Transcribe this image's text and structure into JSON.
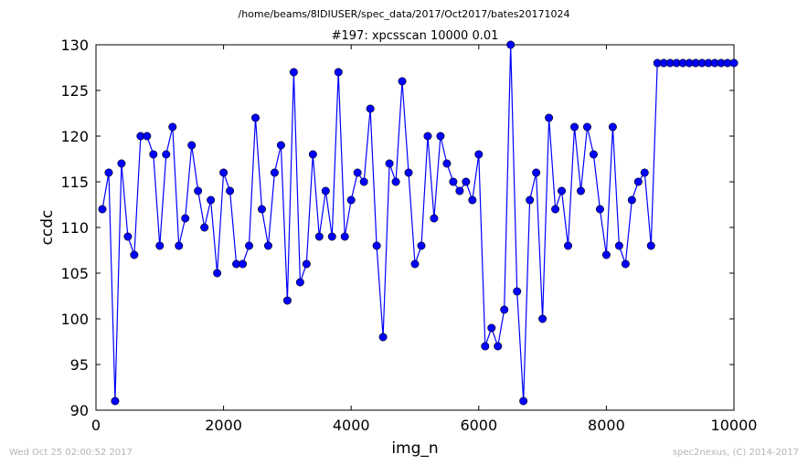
{
  "chart_data": {
    "type": "line",
    "suptitle": "/home/beams/8IDIUSER/spec_data/2017/Oct2017/bates20171024",
    "title": "#197: xpcsscan 10000 0.01",
    "xlabel": "img_n",
    "ylabel": "ccdc",
    "xlim": [
      0,
      10000
    ],
    "ylim": [
      90,
      130
    ],
    "xticks": [
      0,
      2000,
      4000,
      6000,
      8000,
      10000
    ],
    "yticks": [
      90,
      95,
      100,
      105,
      110,
      115,
      120,
      125,
      130
    ],
    "grid": false,
    "series": [
      {
        "color": "#0000ff",
        "marker": "circle",
        "x": [
          100,
          200,
          300,
          400,
          500,
          600,
          700,
          800,
          900,
          1000,
          1100,
          1200,
          1300,
          1400,
          1500,
          1600,
          1700,
          1800,
          1900,
          2000,
          2100,
          2200,
          2300,
          2400,
          2500,
          2600,
          2700,
          2800,
          2900,
          3000,
          3100,
          3200,
          3300,
          3400,
          3500,
          3600,
          3700,
          3800,
          3900,
          4000,
          4100,
          4200,
          4300,
          4400,
          4500,
          4600,
          4700,
          4800,
          4900,
          5000,
          5100,
          5200,
          5300,
          5400,
          5500,
          5600,
          5700,
          5800,
          5900,
          6000,
          6100,
          6200,
          6300,
          6400,
          6500,
          6600,
          6700,
          6800,
          6900,
          7000,
          7100,
          7200,
          7300,
          7400,
          7500,
          7600,
          7700,
          7800,
          7900,
          8000,
          8100,
          8200,
          8300,
          8400,
          8500,
          8600,
          8700,
          8800,
          8900,
          9000,
          9100,
          9200,
          9300,
          9400,
          9500,
          9600,
          9700,
          9800,
          9900,
          10000
        ],
        "y": [
          112,
          116,
          91,
          117,
          109,
          107,
          120,
          120,
          118,
          108,
          118,
          121,
          108,
          111,
          119,
          114,
          110,
          113,
          105,
          116,
          114,
          106,
          106,
          108,
          122,
          112,
          108,
          116,
          119,
          102,
          127,
          104,
          106,
          118,
          109,
          114,
          109,
          127,
          109,
          113,
          116,
          115,
          123,
          108,
          98,
          117,
          115,
          126,
          116,
          106,
          108,
          120,
          111,
          120,
          117,
          115,
          114,
          115,
          113,
          118,
          97,
          99,
          97,
          101,
          130,
          103,
          91,
          113,
          116,
          100,
          122,
          112,
          114,
          108,
          121,
          114,
          121,
          118,
          112,
          107,
          121,
          108,
          106,
          113,
          115,
          116,
          108,
          128,
          128,
          128,
          128,
          128,
          128,
          128,
          128,
          128,
          128,
          128,
          128,
          128
        ]
      }
    ]
  },
  "footer": {
    "left": "Wed Oct 25 02:00:52 2017",
    "right": "spec2nexus, (C) 2014-2017"
  }
}
